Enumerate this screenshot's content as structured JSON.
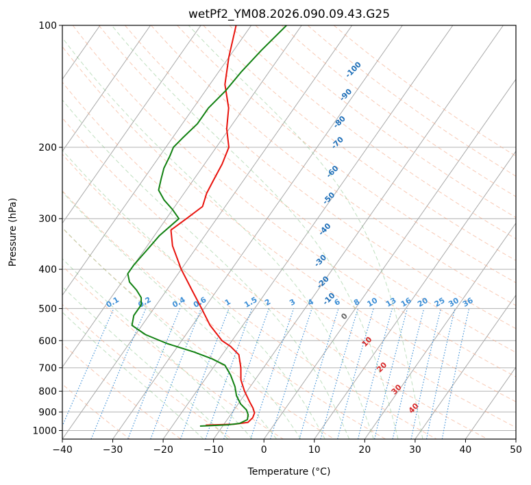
{
  "chart_data": {
    "type": "line",
    "subtype": "skew-t log-p",
    "title": "wetPf2_YM08.2026.090.09.43.G25",
    "xlabel": "Temperature (°C)",
    "ylabel": "Pressure (hPa)",
    "xlim": [
      -40,
      50
    ],
    "ylim_hpa": [
      1050,
      100
    ],
    "grid": true,
    "x_ticks": [
      -40,
      -30,
      -20,
      -10,
      0,
      10,
      20,
      30,
      40,
      50
    ],
    "x_tick_labels": [
      "−40",
      "−30",
      "−20",
      "−10",
      "0",
      "10",
      "20",
      "30",
      "40",
      "50"
    ],
    "y_ticks": [
      100,
      200,
      300,
      400,
      500,
      600,
      700,
      800,
      900,
      1000
    ],
    "y_tick_labels": [
      "100",
      "200",
      "300",
      "400",
      "500",
      "600",
      "700",
      "800",
      "900",
      "1000"
    ],
    "skew_factor": 0.7,
    "isotherm_spacing_c": 10,
    "dry_adiabats_theta_c": [
      -30,
      -20,
      -10,
      0,
      10,
      20,
      30,
      40,
      50,
      60,
      70,
      80,
      90,
      100,
      110,
      120,
      130,
      140,
      150,
      160,
      170
    ],
    "moist_adiabats_c": [
      -15,
      -10,
      -5,
      0,
      5,
      10,
      15,
      20,
      25,
      30
    ],
    "mixing_ratios_gkg": [
      0.1,
      0.2,
      0.4,
      0.6,
      1,
      1.5,
      2,
      3,
      4,
      6,
      8,
      10,
      13,
      16,
      20,
      25,
      30,
      36
    ],
    "mixing_ratio_labels": [
      "0.1",
      "0.2",
      "0.4",
      "0.6",
      "1",
      "1.5",
      "2",
      "3",
      "4",
      "6",
      "8",
      "10",
      "13",
      "16",
      "20",
      "25",
      "30",
      "36"
    ],
    "mixing_ratio_label_pressure": 500,
    "negative_labels": [
      {
        "text": "-100",
        "p": 130,
        "t": -33
      },
      {
        "text": "-90",
        "p": 150,
        "t": -31
      },
      {
        "text": "-80",
        "p": 175,
        "t": -28.5
      },
      {
        "text": "-70",
        "p": 197,
        "t": -26
      },
      {
        "text": "-60",
        "p": 232,
        "t": -23
      },
      {
        "text": "-50",
        "p": 270,
        "t": -20
      },
      {
        "text": "-40",
        "p": 322,
        "t": -16.5
      },
      {
        "text": "-30",
        "p": 385,
        "t": -13
      },
      {
        "text": "-20",
        "p": 435,
        "t": -9.5
      },
      {
        "text": "-10",
        "p": 478,
        "t": -6
      }
    ],
    "zero_label": {
      "text": "0",
      "p": 528,
      "t": -0.5
    },
    "positive_labels": [
      {
        "text": "10",
        "p": 610,
        "t": 7.5
      },
      {
        "text": "20",
        "p": 705,
        "t": 14
      },
      {
        "text": "30",
        "p": 800,
        "t": 20
      },
      {
        "text": "40",
        "p": 890,
        "t": 26
      }
    ],
    "series": [
      {
        "name": "Temperature",
        "color": "#e8120c",
        "points": [
          [
            970,
            -13.5
          ],
          [
            965,
            -8
          ],
          [
            955,
            -5.5
          ],
          [
            930,
            -5.2
          ],
          [
            905,
            -5.5
          ],
          [
            880,
            -6.5
          ],
          [
            850,
            -8
          ],
          [
            800,
            -10.5
          ],
          [
            750,
            -12.8
          ],
          [
            700,
            -14.5
          ],
          [
            650,
            -16.7
          ],
          [
            620,
            -19.5
          ],
          [
            600,
            -22
          ],
          [
            550,
            -26.5
          ],
          [
            500,
            -30.5
          ],
          [
            450,
            -35
          ],
          [
            400,
            -40
          ],
          [
            350,
            -45
          ],
          [
            320,
            -47.5
          ],
          [
            300,
            -46
          ],
          [
            280,
            -44.5
          ],
          [
            260,
            -45.5
          ],
          [
            240,
            -46
          ],
          [
            220,
            -46.5
          ],
          [
            200,
            -47.5
          ],
          [
            180,
            -50.5
          ],
          [
            160,
            -53
          ],
          [
            140,
            -57
          ],
          [
            120,
            -60
          ],
          [
            100,
            -63
          ]
        ]
      },
      {
        "name": "Dewpoint",
        "color": "#108010",
        "points": [
          [
            975,
            -14.5
          ],
          [
            968,
            -9
          ],
          [
            960,
            -7
          ],
          [
            940,
            -6
          ],
          [
            915,
            -6.5
          ],
          [
            890,
            -7.5
          ],
          [
            860,
            -9.5
          ],
          [
            820,
            -11.5
          ],
          [
            780,
            -13
          ],
          [
            730,
            -15.5
          ],
          [
            690,
            -18
          ],
          [
            665,
            -21.5
          ],
          [
            640,
            -26
          ],
          [
            610,
            -32.5
          ],
          [
            580,
            -38
          ],
          [
            550,
            -42
          ],
          [
            520,
            -43
          ],
          [
            490,
            -43
          ],
          [
            470,
            -44
          ],
          [
            450,
            -46
          ],
          [
            430,
            -48.5
          ],
          [
            410,
            -50
          ],
          [
            390,
            -50
          ],
          [
            360,
            -49.5
          ],
          [
            330,
            -49
          ],
          [
            300,
            -47.5
          ],
          [
            285,
            -50
          ],
          [
            270,
            -53
          ],
          [
            255,
            -55.5
          ],
          [
            240,
            -56.5
          ],
          [
            225,
            -57.5
          ],
          [
            210,
            -58
          ],
          [
            200,
            -58.5
          ],
          [
            190,
            -58
          ],
          [
            175,
            -57
          ],
          [
            160,
            -57
          ],
          [
            145,
            -56
          ],
          [
            130,
            -55.5
          ],
          [
            115,
            -54.5
          ],
          [
            100,
            -53
          ]
        ]
      }
    ]
  }
}
